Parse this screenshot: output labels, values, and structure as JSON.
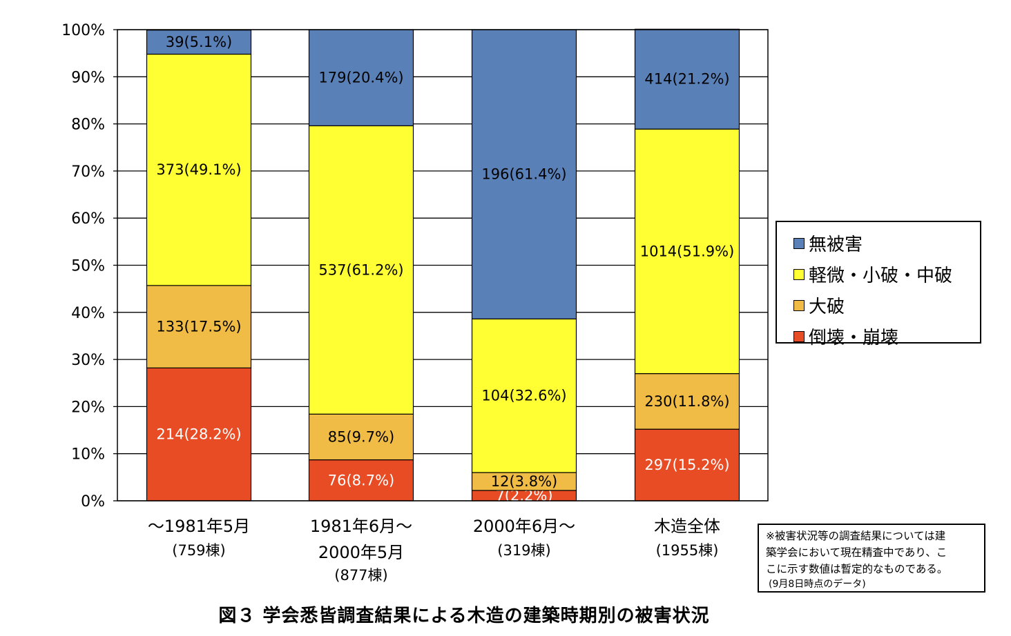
{
  "chart_data": {
    "type": "bar",
    "stacked": true,
    "normalized": true,
    "ylim": [
      0,
      100
    ],
    "yticks": [
      "0%",
      "10%",
      "20%",
      "30%",
      "40%",
      "50%",
      "60%",
      "70%",
      "80%",
      "90%",
      "100%"
    ],
    "grid": true,
    "legend_position": "right",
    "categories": [
      {
        "name": "〜1981年5月",
        "line2": "",
        "count": "(759棟)"
      },
      {
        "name": "1981年6月〜",
        "line2": "2000年5月",
        "count": "(877棟)"
      },
      {
        "name": "2000年6月〜",
        "line2": "",
        "count": "(319棟)"
      },
      {
        "name": "木造全体",
        "line2": "",
        "count": "(1955棟)"
      }
    ],
    "series": [
      {
        "name": "倒壊・崩壊",
        "color": "#e84c25",
        "values": [
          28.2,
          8.7,
          2.2,
          15.2
        ],
        "labels": [
          "214(28.2%)",
          "76(8.7%)",
          "7(2.2%)",
          "297(15.2%)"
        ]
      },
      {
        "name": "大破",
        "color": "#f0bc45",
        "values": [
          17.5,
          9.7,
          3.8,
          11.8
        ],
        "labels": [
          "133(17.5%)",
          "85(9.7%)",
          "12(3.8%)",
          "230(11.8%)"
        ]
      },
      {
        "name": "軽微・小破・中破",
        "color": "#ffff33",
        "values": [
          49.1,
          61.2,
          32.6,
          51.9
        ],
        "labels": [
          "373(49.1%)",
          "537(61.2%)",
          "104(32.6%)",
          "1014(51.9%)"
        ]
      },
      {
        "name": "無被害",
        "color": "#5a80b8",
        "values": [
          5.1,
          20.4,
          61.4,
          21.2
        ],
        "labels": [
          "39(5.1%)",
          "179(20.4%)",
          "196(61.4%)",
          "414(21.2%)"
        ]
      }
    ]
  },
  "legend": [
    {
      "label": "無被害",
      "color": "#5a80b8"
    },
    {
      "label": "軽微・小破・中破",
      "color": "#ffff33"
    },
    {
      "label": "大破",
      "color": "#f0bc45"
    },
    {
      "label": "倒壊・崩壊",
      "color": "#e84c25"
    }
  ],
  "note": {
    "lines": [
      "※被害状況等の調査結果については建",
      "築学会において現在精査中であり、こ",
      "こに示す数値は暫定的なものである。"
    ],
    "date": "(9月8日時点のデータ)"
  },
  "caption": "図３ 学会悉皆調査結果による木造の建築時期別の被害状況"
}
